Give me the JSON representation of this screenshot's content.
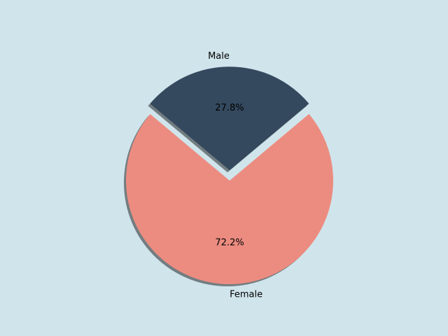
{
  "chart_data": {
    "type": "pie",
    "categories": [
      "Male",
      "Female"
    ],
    "values": [
      27.8,
      72.2
    ],
    "value_labels": [
      "27.8%",
      "72.2%"
    ],
    "colors": [
      "#34495e",
      "#ec8c80"
    ]
  }
}
